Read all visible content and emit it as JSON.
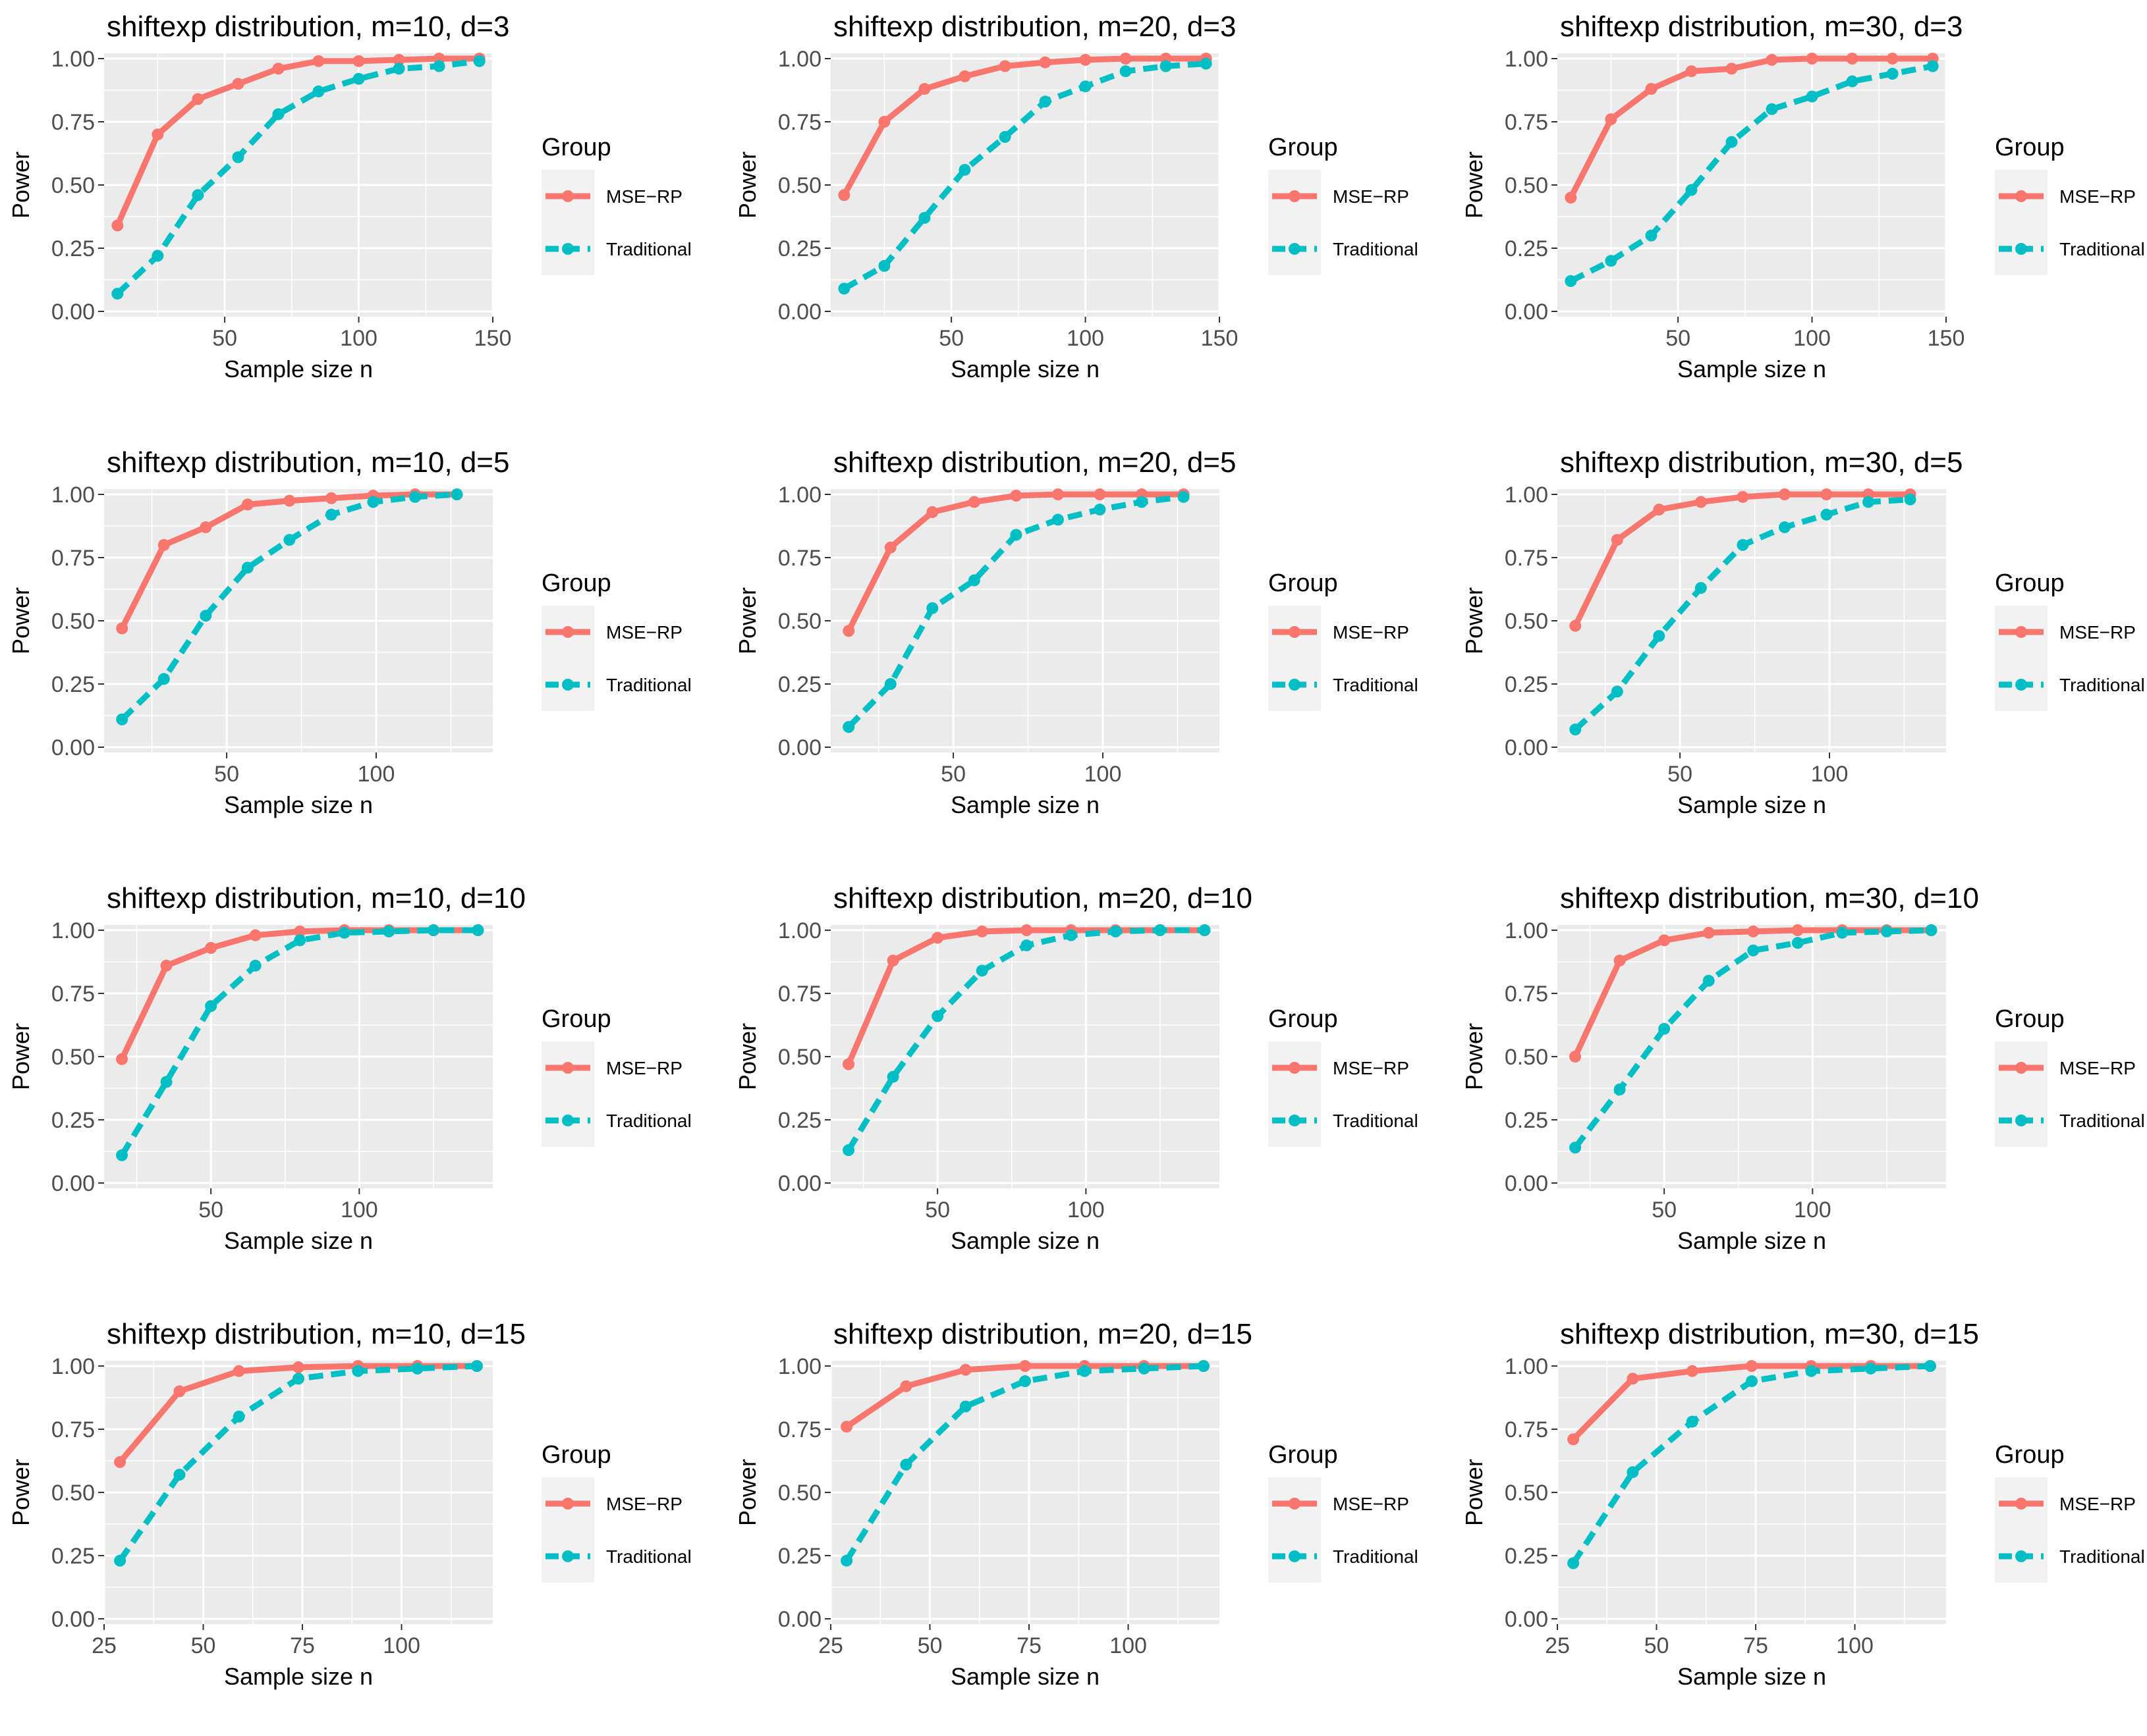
{
  "figure": {
    "colors": {
      "mse_rp": "#F8766D",
      "traditional": "#00BFC4",
      "panel_bg": "#EBEBEB",
      "grid": "#FFFFFF",
      "legend_key_bg": "#F2F2F2"
    }
  },
  "chart_data": [
    {
      "type": "line",
      "title": "shiftexp distribution, m=10, d=3",
      "xlabel": "Sample size n",
      "ylabel": "Power",
      "xlim": [
        5,
        150
      ],
      "xticks": [
        50,
        100,
        150
      ],
      "ylim": [
        0,
        1
      ],
      "yticks": [
        "0.00",
        "0.25",
        "0.50",
        "0.75",
        "1.00"
      ],
      "x": [
        10,
        25,
        40,
        55,
        70,
        85,
        100,
        115,
        130,
        145
      ],
      "legend": {
        "title": "Group",
        "placement": "right"
      },
      "series": [
        {
          "name": "MSE−RP",
          "style": "solid",
          "values": [
            0.34,
            0.7,
            0.84,
            0.9,
            0.96,
            0.99,
            0.99,
            0.995,
            1.0,
            1.0
          ]
        },
        {
          "name": "Traditional",
          "style": "dashed",
          "values": [
            0.07,
            0.22,
            0.46,
            0.61,
            0.78,
            0.87,
            0.92,
            0.96,
            0.97,
            0.99
          ]
        }
      ]
    },
    {
      "type": "line",
      "title": "shiftexp distribution, m=20, d=3",
      "xlabel": "Sample size n",
      "ylabel": "Power",
      "xlim": [
        5,
        150
      ],
      "xticks": [
        50,
        100,
        150
      ],
      "ylim": [
        0,
        1
      ],
      "yticks": [
        "0.00",
        "0.25",
        "0.50",
        "0.75",
        "1.00"
      ],
      "x": [
        10,
        25,
        40,
        55,
        70,
        85,
        100,
        115,
        130,
        145
      ],
      "legend": {
        "title": "Group",
        "placement": "right"
      },
      "series": [
        {
          "name": "MSE−RP",
          "style": "solid",
          "values": [
            0.46,
            0.75,
            0.88,
            0.93,
            0.97,
            0.985,
            0.995,
            1.0,
            1.0,
            1.0
          ]
        },
        {
          "name": "Traditional",
          "style": "dashed",
          "values": [
            0.09,
            0.18,
            0.37,
            0.56,
            0.69,
            0.83,
            0.89,
            0.95,
            0.97,
            0.98
          ]
        }
      ]
    },
    {
      "type": "line",
      "title": "shiftexp distribution, m=30, d=3",
      "xlabel": "Sample size n",
      "ylabel": "Power",
      "xlim": [
        5,
        150
      ],
      "xticks": [
        50,
        100,
        150
      ],
      "ylim": [
        0,
        1
      ],
      "yticks": [
        "0.00",
        "0.25",
        "0.50",
        "0.75",
        "1.00"
      ],
      "x": [
        10,
        25,
        40,
        55,
        70,
        85,
        100,
        115,
        130,
        145
      ],
      "legend": {
        "title": "Group",
        "placement": "right"
      },
      "series": [
        {
          "name": "MSE−RP",
          "style": "solid",
          "values": [
            0.45,
            0.76,
            0.88,
            0.95,
            0.96,
            0.995,
            1.0,
            1.0,
            1.0,
            1.0
          ]
        },
        {
          "name": "Traditional",
          "style": "dashed",
          "values": [
            0.12,
            0.2,
            0.3,
            0.48,
            0.67,
            0.8,
            0.85,
            0.91,
            0.94,
            0.97
          ]
        }
      ]
    },
    {
      "type": "line",
      "title": "shiftexp distribution, m=10, d=5",
      "xlabel": "Sample size n",
      "ylabel": "Power",
      "xlim": [
        9,
        139
      ],
      "xticks": [
        50,
        100
      ],
      "ylim": [
        0,
        1
      ],
      "yticks": [
        "0.00",
        "0.25",
        "0.50",
        "0.75",
        "1.00"
      ],
      "x": [
        15,
        29,
        43,
        57,
        71,
        85,
        99,
        113,
        127
      ],
      "legend": {
        "title": "Group",
        "placement": "right"
      },
      "series": [
        {
          "name": "MSE−RP",
          "style": "solid",
          "values": [
            0.47,
            0.8,
            0.87,
            0.96,
            0.975,
            0.985,
            0.995,
            1.0,
            1.0
          ]
        },
        {
          "name": "Traditional",
          "style": "dashed",
          "values": [
            0.11,
            0.27,
            0.52,
            0.71,
            0.82,
            0.92,
            0.97,
            0.99,
            1.0
          ]
        }
      ]
    },
    {
      "type": "line",
      "title": "shiftexp distribution, m=20, d=5",
      "xlabel": "Sample size n",
      "ylabel": "Power",
      "xlim": [
        9,
        139
      ],
      "xticks": [
        50,
        100
      ],
      "ylim": [
        0,
        1
      ],
      "yticks": [
        "0.00",
        "0.25",
        "0.50",
        "0.75",
        "1.00"
      ],
      "x": [
        15,
        29,
        43,
        57,
        71,
        85,
        99,
        113,
        127
      ],
      "legend": {
        "title": "Group",
        "placement": "right"
      },
      "series": [
        {
          "name": "MSE−RP",
          "style": "solid",
          "values": [
            0.46,
            0.79,
            0.93,
            0.97,
            0.995,
            1.0,
            1.0,
            1.0,
            1.0
          ]
        },
        {
          "name": "Traditional",
          "style": "dashed",
          "values": [
            0.08,
            0.25,
            0.55,
            0.66,
            0.84,
            0.9,
            0.94,
            0.97,
            0.99
          ]
        }
      ]
    },
    {
      "type": "line",
      "title": "shiftexp distribution, m=30, d=5",
      "xlabel": "Sample size n",
      "ylabel": "Power",
      "xlim": [
        9,
        139
      ],
      "xticks": [
        50,
        100
      ],
      "ylim": [
        0,
        1
      ],
      "yticks": [
        "0.00",
        "0.25",
        "0.50",
        "0.75",
        "1.00"
      ],
      "x": [
        15,
        29,
        43,
        57,
        71,
        85,
        99,
        113,
        127
      ],
      "legend": {
        "title": "Group",
        "placement": "right"
      },
      "series": [
        {
          "name": "MSE−RP",
          "style": "solid",
          "values": [
            0.48,
            0.82,
            0.94,
            0.97,
            0.99,
            1.0,
            1.0,
            1.0,
            1.0
          ]
        },
        {
          "name": "Traditional",
          "style": "dashed",
          "values": [
            0.07,
            0.22,
            0.44,
            0.63,
            0.8,
            0.87,
            0.92,
            0.97,
            0.98
          ]
        }
      ]
    },
    {
      "type": "line",
      "title": "shiftexp distribution, m=10, d=10",
      "xlabel": "Sample size n",
      "ylabel": "Power",
      "xlim": [
        14,
        145
      ],
      "xticks": [
        50,
        100
      ],
      "ylim": [
        0,
        1
      ],
      "yticks": [
        "0.00",
        "0.25",
        "0.50",
        "0.75",
        "1.00"
      ],
      "x": [
        20,
        35,
        50,
        65,
        80,
        95,
        110,
        125,
        140
      ],
      "legend": {
        "title": "Group",
        "placement": "right"
      },
      "series": [
        {
          "name": "MSE−RP",
          "style": "solid",
          "values": [
            0.49,
            0.86,
            0.93,
            0.98,
            0.995,
            1.0,
            1.0,
            1.0,
            1.0
          ]
        },
        {
          "name": "Traditional",
          "style": "dashed",
          "values": [
            0.11,
            0.4,
            0.7,
            0.86,
            0.96,
            0.99,
            0.995,
            1.0,
            1.0
          ]
        }
      ]
    },
    {
      "type": "line",
      "title": "shiftexp distribution, m=20, d=10",
      "xlabel": "Sample size n",
      "ylabel": "Power",
      "xlim": [
        14,
        145
      ],
      "xticks": [
        50,
        100
      ],
      "ylim": [
        0,
        1
      ],
      "yticks": [
        "0.00",
        "0.25",
        "0.50",
        "0.75",
        "1.00"
      ],
      "x": [
        20,
        35,
        50,
        65,
        80,
        95,
        110,
        125,
        140
      ],
      "legend": {
        "title": "Group",
        "placement": "right"
      },
      "series": [
        {
          "name": "MSE−RP",
          "style": "solid",
          "values": [
            0.47,
            0.88,
            0.97,
            0.995,
            1.0,
            1.0,
            1.0,
            1.0,
            1.0
          ]
        },
        {
          "name": "Traditional",
          "style": "dashed",
          "values": [
            0.13,
            0.42,
            0.66,
            0.84,
            0.94,
            0.98,
            0.995,
            1.0,
            1.0
          ]
        }
      ]
    },
    {
      "type": "line",
      "title": "shiftexp distribution, m=30, d=10",
      "xlabel": "Sample size n",
      "ylabel": "Power",
      "xlim": [
        14,
        145
      ],
      "xticks": [
        50,
        100
      ],
      "ylim": [
        0,
        1
      ],
      "yticks": [
        "0.00",
        "0.25",
        "0.50",
        "0.75",
        "1.00"
      ],
      "x": [
        20,
        35,
        50,
        65,
        80,
        95,
        110,
        125,
        140
      ],
      "legend": {
        "title": "Group",
        "placement": "right"
      },
      "series": [
        {
          "name": "MSE−RP",
          "style": "solid",
          "values": [
            0.5,
            0.88,
            0.96,
            0.99,
            0.995,
            1.0,
            1.0,
            1.0,
            1.0
          ]
        },
        {
          "name": "Traditional",
          "style": "dashed",
          "values": [
            0.14,
            0.37,
            0.61,
            0.8,
            0.92,
            0.95,
            0.99,
            0.995,
            1.0
          ]
        }
      ]
    },
    {
      "type": "line",
      "title": "shiftexp distribution, m=10, d=15",
      "xlabel": "Sample size n",
      "ylabel": "Power",
      "xlim": [
        25,
        123
      ],
      "xticks": [
        25,
        50,
        75,
        100
      ],
      "ylim": [
        0,
        1
      ],
      "yticks": [
        "0.00",
        "0.25",
        "0.50",
        "0.75",
        "1.00"
      ],
      "x": [
        29,
        44,
        59,
        74,
        89,
        104,
        119
      ],
      "legend": {
        "title": "Group",
        "placement": "right"
      },
      "series": [
        {
          "name": "MSE−RP",
          "style": "solid",
          "values": [
            0.62,
            0.9,
            0.98,
            0.995,
            1.0,
            1.0,
            1.0
          ]
        },
        {
          "name": "Traditional",
          "style": "dashed",
          "values": [
            0.23,
            0.57,
            0.8,
            0.95,
            0.98,
            0.99,
            1.0
          ]
        }
      ]
    },
    {
      "type": "line",
      "title": "shiftexp distribution, m=20, d=15",
      "xlabel": "Sample size n",
      "ylabel": "Power",
      "xlim": [
        25,
        123
      ],
      "xticks": [
        25,
        50,
        75,
        100
      ],
      "ylim": [
        0,
        1
      ],
      "yticks": [
        "0.00",
        "0.25",
        "0.50",
        "0.75",
        "1.00"
      ],
      "x": [
        29,
        44,
        59,
        74,
        89,
        104,
        119
      ],
      "legend": {
        "title": "Group",
        "placement": "right"
      },
      "series": [
        {
          "name": "MSE−RP",
          "style": "solid",
          "values": [
            0.76,
            0.92,
            0.985,
            1.0,
            1.0,
            1.0,
            1.0
          ]
        },
        {
          "name": "Traditional",
          "style": "dashed",
          "values": [
            0.23,
            0.61,
            0.84,
            0.94,
            0.98,
            0.99,
            1.0
          ]
        }
      ]
    },
    {
      "type": "line",
      "title": "shiftexp distribution, m=30, d=15",
      "xlabel": "Sample size n",
      "ylabel": "Power",
      "xlim": [
        25,
        123
      ],
      "xticks": [
        25,
        50,
        75,
        100
      ],
      "ylim": [
        0,
        1
      ],
      "yticks": [
        "0.00",
        "0.25",
        "0.50",
        "0.75",
        "1.00"
      ],
      "x": [
        29,
        44,
        59,
        74,
        89,
        104,
        119
      ],
      "legend": {
        "title": "Group",
        "placement": "right"
      },
      "series": [
        {
          "name": "MSE−RP",
          "style": "solid",
          "values": [
            0.71,
            0.95,
            0.98,
            1.0,
            1.0,
            1.0,
            1.0
          ]
        },
        {
          "name": "Traditional",
          "style": "dashed",
          "values": [
            0.22,
            0.58,
            0.78,
            0.94,
            0.98,
            0.99,
            1.0
          ]
        }
      ]
    }
  ]
}
